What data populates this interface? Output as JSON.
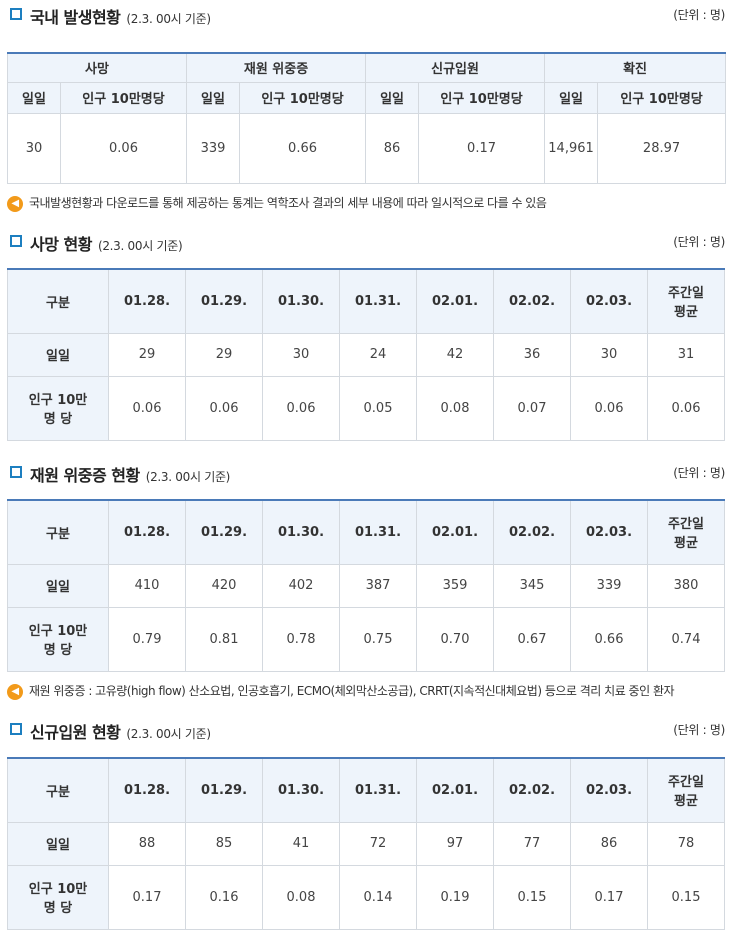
{
  "summary": {
    "title": "국내 발생현황",
    "date": "(2.3. 00시 기준)",
    "unit": "(단위 : 명)",
    "groups": [
      "사망",
      "재원 위중증",
      "신규입원",
      "확진"
    ],
    "col_daily": "일일",
    "col_per100k": "인구 10만명당",
    "values": [
      {
        "daily": "30",
        "per": "0.06"
      },
      {
        "daily": "339",
        "per": "0.66"
      },
      {
        "daily": "86",
        "per": "0.17"
      },
      {
        "daily": "14,961",
        "per": "28.97"
      }
    ],
    "note": "국내발생현황과 다운로드를 통해 제공하는 통계는 역학조사 결과의 세부 내용에 따라 일시적으로 다를 수 있음"
  },
  "common": {
    "header_label": "구분",
    "dates": [
      "01.28.",
      "01.29.",
      "01.30.",
      "01.31.",
      "02.01.",
      "02.02.",
      "02.03."
    ],
    "avg_line1": "주간일",
    "avg_line2": "평균",
    "row_daily": "일일",
    "row_per_line1": "인구 10만",
    "row_per_line2": "명 당"
  },
  "deaths": {
    "title": "사망 현황",
    "date": "(2.3. 00시 기준)",
    "unit": "(단위 : 명)",
    "daily": [
      "29",
      "29",
      "30",
      "24",
      "42",
      "36",
      "30",
      "31"
    ],
    "per": [
      "0.06",
      "0.06",
      "0.06",
      "0.05",
      "0.08",
      "0.07",
      "0.06",
      "0.06"
    ]
  },
  "severe": {
    "title": "재원 위중증 현황",
    "date": "(2.3. 00시 기준)",
    "unit": "(단위 : 명)",
    "daily": [
      "410",
      "420",
      "402",
      "387",
      "359",
      "345",
      "339",
      "380"
    ],
    "per": [
      "0.79",
      "0.81",
      "0.78",
      "0.75",
      "0.70",
      "0.67",
      "0.66",
      "0.74"
    ],
    "note": "재원 위중증 : 고유량(high flow) 산소요법, 인공호흡기, ECMO(체외막산소공급), CRRT(지속적신대체요법) 등으로 격리 치료 중인 환자"
  },
  "admissions": {
    "title": "신규입원 현황",
    "date": "(2.3. 00시 기준)",
    "unit": "(단위 : 명)",
    "daily": [
      "88",
      "85",
      "41",
      "72",
      "97",
      "77",
      "86",
      "78"
    ],
    "per": [
      "0.17",
      "0.16",
      "0.08",
      "0.14",
      "0.19",
      "0.15",
      "0.17",
      "0.15"
    ]
  },
  "icons": {
    "section": "square-bullet-icon",
    "note": "speaker-icon"
  },
  "colors": {
    "accent": "#1d7fc0",
    "header_bg": "#eef4fb",
    "note_icon": "#f29a1a"
  }
}
